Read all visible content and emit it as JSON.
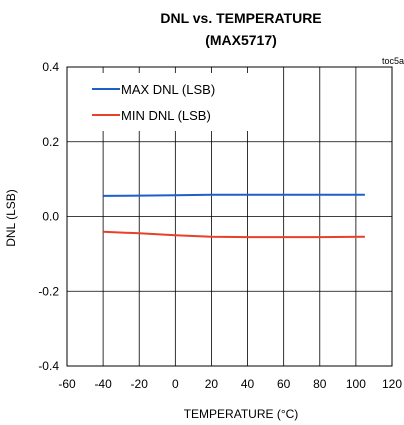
{
  "chart_data": {
    "type": "line",
    "title": "DNL vs. TEMPERATURE",
    "subtitle": "(MAX5717)",
    "tag": "toc5a",
    "xlabel": "TEMPERATURE (°C)",
    "ylabel": "DNL (LSB)",
    "xlim": [
      -60,
      120
    ],
    "ylim": [
      -0.4,
      0.4
    ],
    "x_ticks": [
      "-60",
      "-40",
      "-20",
      "0",
      "20",
      "40",
      "60",
      "80",
      "100",
      "120"
    ],
    "x_tick_values": [
      -60,
      -40,
      -20,
      0,
      20,
      40,
      60,
      80,
      100,
      120
    ],
    "y_ticks": [
      "0.4",
      "0.2",
      "0.0",
      "-0.2",
      "-0.4"
    ],
    "y_tick_values": [
      0.4,
      0.2,
      0.0,
      -0.2,
      -0.4
    ],
    "grid": true,
    "legend_position": "top-left",
    "series": [
      {
        "name": "MAX DNL (LSB)",
        "color": "#1f5fc8",
        "x": [
          -40,
          -20,
          0,
          20,
          40,
          60,
          80,
          105
        ],
        "y": [
          0.055,
          0.056,
          0.057,
          0.058,
          0.058,
          0.058,
          0.058,
          0.058
        ]
      },
      {
        "name": "MIN DNL (LSB)",
        "color": "#e8402a",
        "x": [
          -40,
          -20,
          0,
          20,
          40,
          60,
          80,
          105
        ],
        "y": [
          -0.041,
          -0.045,
          -0.05,
          -0.054,
          -0.055,
          -0.055,
          -0.055,
          -0.054
        ]
      }
    ]
  }
}
